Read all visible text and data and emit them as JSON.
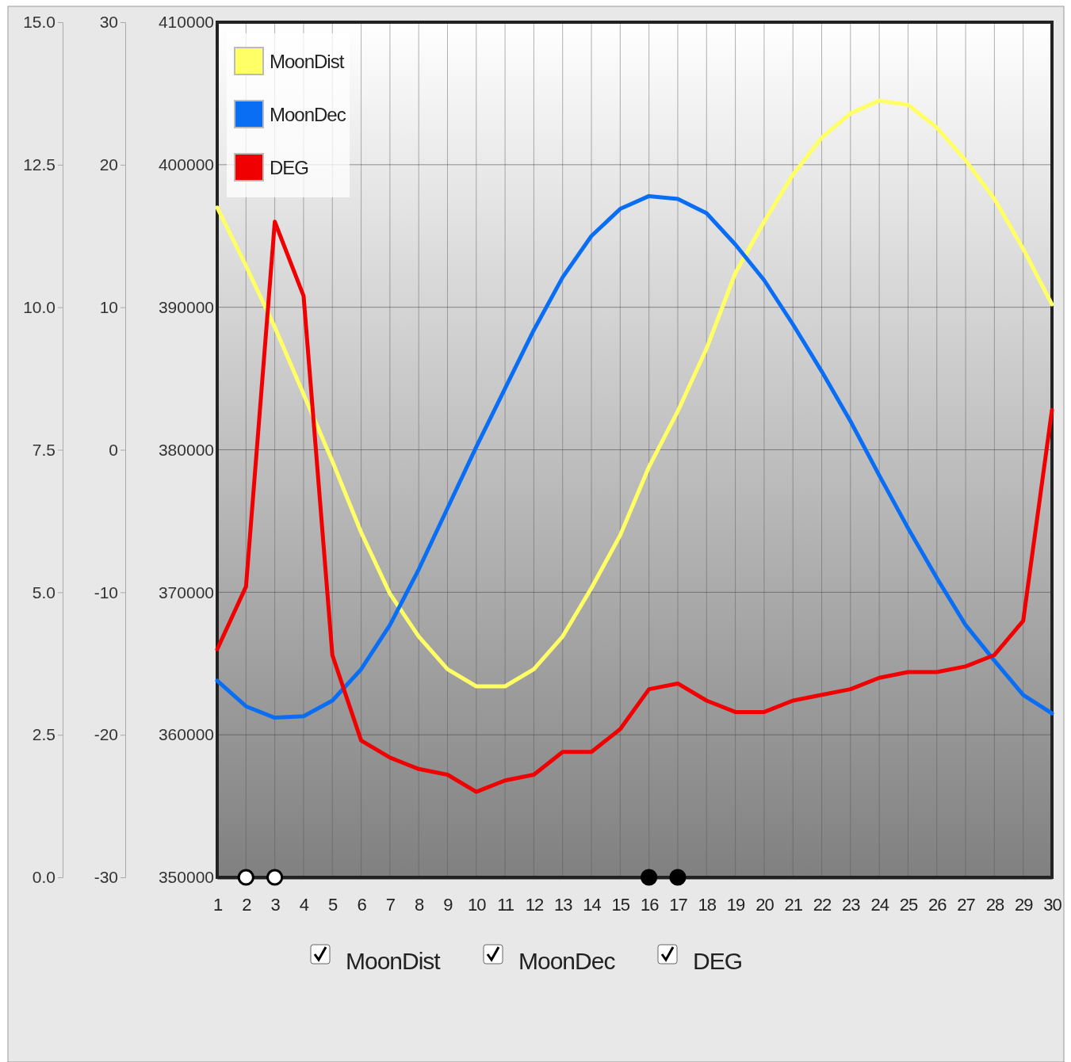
{
  "chart_data": {
    "type": "line",
    "x": [
      1,
      2,
      3,
      4,
      5,
      6,
      7,
      8,
      9,
      10,
      11,
      12,
      13,
      14,
      15,
      16,
      17,
      18,
      19,
      20,
      21,
      22,
      23,
      24,
      25,
      26,
      27,
      28,
      29,
      30
    ],
    "xlim": [
      1,
      30
    ],
    "xticks": [
      1,
      2,
      3,
      4,
      5,
      6,
      7,
      8,
      9,
      10,
      11,
      12,
      13,
      14,
      15,
      16,
      17,
      18,
      19,
      20,
      21,
      22,
      23,
      24,
      25,
      26,
      27,
      28,
      29,
      30
    ],
    "ylim": [
      350000,
      410000
    ],
    "yticks": [
      350000,
      360000,
      370000,
      380000,
      390000,
      400000,
      410000
    ],
    "y3lim": [
      -30,
      30
    ],
    "y3ticks": [
      -30,
      -20,
      -10,
      0,
      10,
      20,
      30
    ],
    "y2lim": [
      0,
      15
    ],
    "y2ticks": [
      {
        "value": 0,
        "label": "0.0"
      },
      {
        "value": 2.5,
        "label": "2.5"
      },
      {
        "value": 5,
        "label": "5.0"
      },
      {
        "value": 7.5,
        "label": "7.5"
      },
      {
        "value": 10,
        "label": "10.0"
      },
      {
        "value": 12.5,
        "label": "12.5"
      },
      {
        "value": 15,
        "label": "15.0"
      }
    ],
    "grid": true,
    "legend": "top left",
    "marker": "none",
    "line_style": "solid",
    "series": [
      {
        "name": "MoonDist",
        "color": "#ffff66",
        "values": [
          397000,
          392900,
          388600,
          383900,
          379200,
          374200,
          369900,
          366900,
          364600,
          363400,
          363400,
          364600,
          366900,
          370300,
          374000,
          378800,
          382700,
          387100,
          392400,
          396000,
          399300,
          401900,
          403600,
          404500,
          404200,
          402600,
          400300,
          397600,
          394100,
          390200
        ]
      },
      {
        "name": "MoonDec",
        "color": "#0a6ef5",
        "axis": "y3",
        "values": [
          -16.2,
          -18.0,
          -18.8,
          -18.7,
          -17.6,
          -15.4,
          -12.3,
          -8.4,
          -4.1,
          0.2,
          4.3,
          8.4,
          12.1,
          15.0,
          16.9,
          17.8,
          17.6,
          16.6,
          14.4,
          11.9,
          8.8,
          5.5,
          2.0,
          -1.8,
          -5.5,
          -9.0,
          -12.3,
          -14.8,
          -17.2,
          -18.5
        ]
      },
      {
        "name": "DEG",
        "color": "#f00000",
        "axis": "y2",
        "values": [
          4.0,
          5.1,
          11.5,
          10.2,
          3.9,
          2.4,
          2.1,
          1.9,
          1.8,
          1.5,
          1.7,
          1.8,
          2.2,
          2.2,
          2.6,
          3.3,
          3.4,
          3.1,
          2.9,
          2.9,
          3.1,
          3.2,
          3.3,
          3.5,
          3.6,
          3.6,
          3.7,
          3.9,
          4.5,
          8.2
        ]
      },
      {
        "type": "scatter",
        "marker": "circle",
        "color": "#ffffff",
        "x": [
          2,
          3
        ],
        "values": [
          350000,
          350000
        ]
      },
      {
        "type": "scatter",
        "marker": "circle",
        "color": "#000000",
        "x": [
          16,
          17
        ],
        "values": [
          350000,
          350000
        ]
      }
    ]
  }
}
